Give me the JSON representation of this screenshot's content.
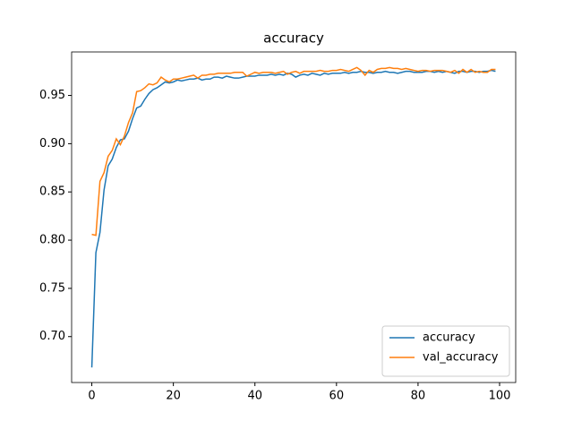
{
  "chart_data": {
    "type": "line",
    "title": "accuracy",
    "x": [
      0,
      1,
      2,
      3,
      4,
      5,
      6,
      7,
      8,
      9,
      10,
      11,
      12,
      13,
      14,
      15,
      16,
      17,
      18,
      19,
      20,
      21,
      22,
      23,
      24,
      25,
      26,
      27,
      28,
      29,
      30,
      31,
      32,
      33,
      34,
      35,
      36,
      37,
      38,
      39,
      40,
      41,
      42,
      43,
      44,
      45,
      46,
      47,
      48,
      49,
      50,
      51,
      52,
      53,
      54,
      55,
      56,
      57,
      58,
      59,
      60,
      61,
      62,
      63,
      64,
      65,
      66,
      67,
      68,
      69,
      70,
      71,
      72,
      73,
      74,
      75,
      76,
      77,
      78,
      79,
      80,
      81,
      82,
      83,
      84,
      85,
      86,
      87,
      88,
      89,
      90,
      91,
      92,
      93,
      94,
      95,
      96,
      97,
      98,
      99
    ],
    "series": [
      {
        "name": "accuracy",
        "color": "#1f77b4",
        "values": [
          0.668,
          0.787,
          0.808,
          0.852,
          0.877,
          0.884,
          0.896,
          0.904,
          0.905,
          0.913,
          0.926,
          0.937,
          0.939,
          0.946,
          0.952,
          0.956,
          0.958,
          0.961,
          0.964,
          0.963,
          0.964,
          0.966,
          0.965,
          0.966,
          0.967,
          0.967,
          0.968,
          0.966,
          0.967,
          0.967,
          0.969,
          0.969,
          0.968,
          0.97,
          0.969,
          0.968,
          0.968,
          0.969,
          0.97,
          0.97,
          0.97,
          0.971,
          0.971,
          0.971,
          0.972,
          0.971,
          0.972,
          0.971,
          0.973,
          0.972,
          0.969,
          0.971,
          0.972,
          0.971,
          0.973,
          0.972,
          0.971,
          0.973,
          0.972,
          0.973,
          0.973,
          0.973,
          0.974,
          0.973,
          0.974,
          0.974,
          0.975,
          0.974,
          0.974,
          0.973,
          0.974,
          0.974,
          0.975,
          0.974,
          0.974,
          0.973,
          0.974,
          0.975,
          0.975,
          0.974,
          0.974,
          0.974,
          0.975,
          0.975,
          0.974,
          0.975,
          0.974,
          0.975,
          0.974,
          0.973,
          0.975,
          0.975,
          0.974,
          0.975,
          0.975,
          0.974,
          0.975,
          0.975,
          0.976,
          0.975
        ]
      },
      {
        "name": "val_accuracy",
        "color": "#ff7f0e",
        "values": [
          0.806,
          0.805,
          0.861,
          0.87,
          0.887,
          0.893,
          0.905,
          0.899,
          0.908,
          0.922,
          0.932,
          0.954,
          0.955,
          0.958,
          0.962,
          0.961,
          0.963,
          0.969,
          0.966,
          0.964,
          0.967,
          0.967,
          0.968,
          0.969,
          0.97,
          0.971,
          0.968,
          0.971,
          0.971,
          0.972,
          0.972,
          0.973,
          0.973,
          0.973,
          0.973,
          0.974,
          0.974,
          0.974,
          0.97,
          0.972,
          0.974,
          0.973,
          0.974,
          0.974,
          0.974,
          0.973,
          0.974,
          0.975,
          0.972,
          0.974,
          0.975,
          0.973,
          0.975,
          0.975,
          0.975,
          0.975,
          0.976,
          0.975,
          0.975,
          0.976,
          0.976,
          0.977,
          0.976,
          0.975,
          0.977,
          0.979,
          0.976,
          0.971,
          0.976,
          0.974,
          0.977,
          0.978,
          0.978,
          0.979,
          0.978,
          0.978,
          0.977,
          0.978,
          0.977,
          0.976,
          0.975,
          0.976,
          0.976,
          0.975,
          0.976,
          0.976,
          0.976,
          0.975,
          0.974,
          0.976,
          0.973,
          0.977,
          0.974,
          0.977,
          0.974,
          0.975,
          0.974,
          0.974,
          0.977,
          0.977
        ]
      }
    ],
    "xlim": [
      -4.95,
      103.95
    ],
    "xticks": [
      0,
      20,
      40,
      60,
      80,
      100
    ],
    "ylim": [
      0.6524,
      0.9951
    ],
    "yticks": [
      {
        "value": 0.7,
        "label": "0.70"
      },
      0.75,
      {
        "value": 0.8,
        "label": "0.80"
      },
      0.85,
      {
        "value": 0.9,
        "label": "0.90"
      },
      0.95
    ],
    "legend": "lower right"
  }
}
